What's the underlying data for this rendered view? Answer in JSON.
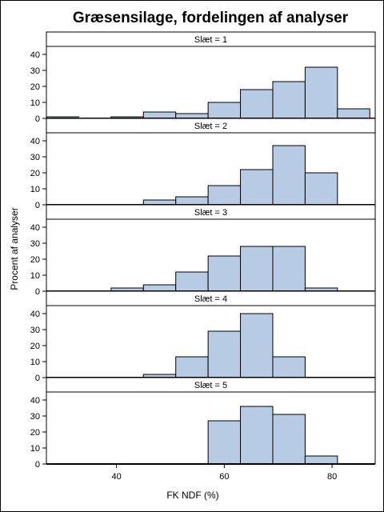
{
  "chart_data": {
    "type": "bar",
    "title": "Græsensilage, fordelingen af analyser",
    "xlabel": "FK NDF (%)",
    "ylabel": "Procent af analyser",
    "xlim": [
      27,
      88
    ],
    "ylim": [
      0,
      45
    ],
    "xticks": [
      40,
      60,
      80
    ],
    "yticks": [
      0,
      10,
      20,
      30,
      40
    ],
    "bin_edges": [
      27,
      33,
      39,
      45,
      51,
      57,
      63,
      69,
      75,
      81,
      87
    ],
    "bar_color": "#b7cbe4",
    "panels": [
      {
        "label": "Slæt = 1",
        "values": [
          1,
          0,
          1,
          4,
          3,
          10,
          18,
          23,
          32,
          6
        ]
      },
      {
        "label": "Slæt = 2",
        "values": [
          0,
          0,
          0,
          3,
          5,
          12,
          22,
          37,
          20,
          0
        ]
      },
      {
        "label": "Slæt = 3",
        "values": [
          0,
          0,
          2,
          4,
          12,
          22,
          28,
          28,
          2,
          0
        ]
      },
      {
        "label": "Slæt = 4",
        "values": [
          0,
          0,
          0,
          2,
          13,
          29,
          40,
          13,
          0,
          0
        ]
      },
      {
        "label": "Slæt = 5",
        "values": [
          0,
          0,
          0,
          0,
          0,
          27,
          36,
          31,
          5,
          0
        ]
      }
    ]
  }
}
